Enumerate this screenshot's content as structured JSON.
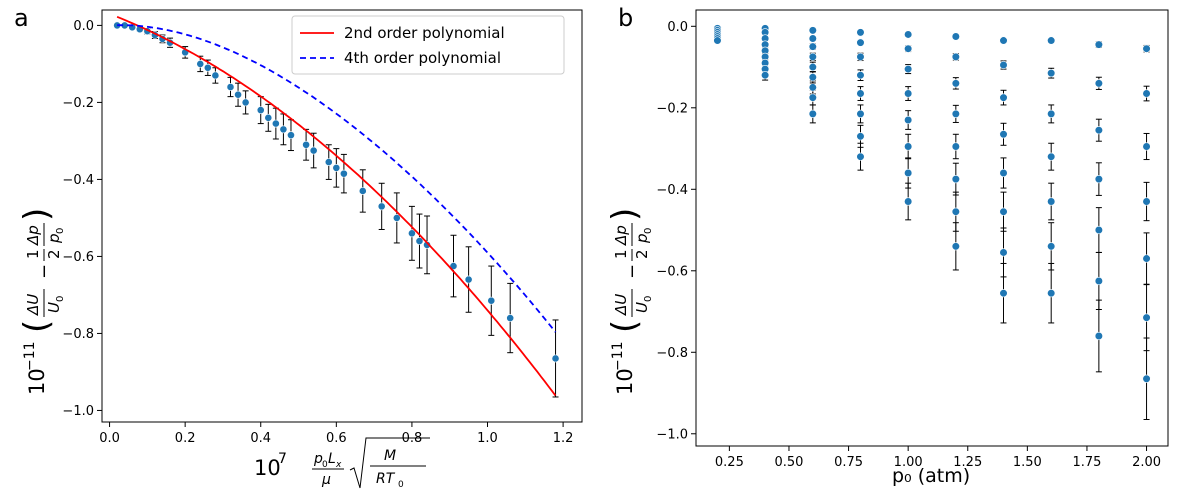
{
  "chart_data": [
    {
      "panel_label": "a",
      "type": "scatter",
      "ylabel_prefix": "10",
      "ylabel_exp": "−11",
      "xlabel_prefix": "10",
      "xlabel_exp": "7",
      "xlim": [
        -0.02,
        1.25
      ],
      "ylim": [
        -1.03,
        0.04
      ],
      "x_ticks": [
        "0.0",
        "0.2",
        "0.4",
        "0.6",
        "0.8",
        "1.0",
        "1.2"
      ],
      "x_tick_values": [
        0.0,
        0.2,
        0.4,
        0.6,
        0.8,
        1.0,
        1.2
      ],
      "y_ticks": [
        "0.0",
        "−0.2",
        "−0.4",
        "−0.6",
        "−0.8",
        "−1.0"
      ],
      "y_tick_values": [
        0.0,
        -0.2,
        -0.4,
        -0.6,
        -0.8,
        -1.0
      ],
      "legend_position": "top-right",
      "legend": [
        {
          "label": "2nd order polynomial",
          "style": "solid",
          "color": "#ff0000"
        },
        {
          "label": "4th order polynomial",
          "style": "dashed",
          "color": "#0000ff"
        }
      ],
      "points": {
        "color": "#1f77b4",
        "x": [
          0.02,
          0.04,
          0.06,
          0.08,
          0.1,
          0.12,
          0.14,
          0.16,
          0.2,
          0.24,
          0.26,
          0.28,
          0.32,
          0.34,
          0.36,
          0.4,
          0.42,
          0.44,
          0.46,
          0.48,
          0.52,
          0.54,
          0.58,
          0.6,
          0.62,
          0.67,
          0.72,
          0.76,
          0.8,
          0.82,
          0.84,
          0.91,
          0.95,
          1.01,
          1.06,
          1.18
        ],
        "y": [
          0.0,
          0.0,
          -0.005,
          -0.01,
          -0.015,
          -0.025,
          -0.035,
          -0.045,
          -0.07,
          -0.1,
          -0.11,
          -0.13,
          -0.16,
          -0.18,
          -0.2,
          -0.22,
          -0.24,
          -0.255,
          -0.27,
          -0.285,
          -0.31,
          -0.325,
          -0.355,
          -0.37,
          -0.385,
          -0.43,
          -0.47,
          -0.5,
          -0.54,
          -0.56,
          -0.57,
          -0.625,
          -0.66,
          -0.715,
          -0.76,
          -0.865
        ],
        "err": [
          0.0,
          0.0,
          0.003,
          0.005,
          0.007,
          0.009,
          0.01,
          0.012,
          0.015,
          0.02,
          0.02,
          0.02,
          0.025,
          0.03,
          0.03,
          0.035,
          0.035,
          0.04,
          0.04,
          0.04,
          0.04,
          0.045,
          0.045,
          0.05,
          0.05,
          0.055,
          0.06,
          0.065,
          0.07,
          0.07,
          0.075,
          0.08,
          0.085,
          0.09,
          0.09,
          0.1
        ]
      },
      "fit_2nd": {
        "x_range": [
          0.02,
          1.18
        ],
        "coeffs": [
          0.03,
          -0.38,
          -0.39
        ]
      },
      "fit_4th": {
        "x_range": [
          0.02,
          1.18
        ],
        "coeffs": [
          0.0,
          0.05,
          -0.9,
          0.36,
          -0.1
        ]
      }
    },
    {
      "panel_label": "b",
      "type": "scatter",
      "ylabel_prefix": "10",
      "ylabel_exp": "−11",
      "xlabel": "p₀ (atm)",
      "xlim": [
        0.11,
        2.09
      ],
      "ylim": [
        -1.03,
        0.04
      ],
      "x_ticks": [
        "0.25",
        "0.50",
        "0.75",
        "1.00",
        "1.25",
        "1.50",
        "1.75",
        "2.00"
      ],
      "x_tick_values": [
        0.25,
        0.5,
        0.75,
        1.0,
        1.25,
        1.5,
        1.75,
        2.0
      ],
      "y_ticks": [
        "0.0",
        "−0.2",
        "−0.4",
        "−0.6",
        "−0.8",
        "−1.0"
      ],
      "y_tick_values": [
        0.0,
        -0.2,
        -0.4,
        -0.6,
        -0.8,
        -1.0
      ],
      "point_color": "#1f77b4",
      "columns": [
        {
          "x": 0.2,
          "y": [
            -0.005,
            -0.01,
            -0.015,
            -0.02,
            -0.025,
            -0.03,
            -0.035
          ],
          "err": [
            0.002,
            0.002,
            0.003,
            0.003,
            0.004,
            0.004,
            0.005
          ]
        },
        {
          "x": 0.4,
          "y": [
            -0.005,
            -0.015,
            -0.03,
            -0.045,
            -0.06,
            -0.075,
            -0.09,
            -0.105,
            -0.12
          ],
          "err": [
            0.003,
            0.004,
            0.005,
            0.006,
            0.007,
            0.008,
            0.009,
            0.01,
            0.012
          ]
        },
        {
          "x": 0.6,
          "y": [
            -0.01,
            -0.03,
            -0.05,
            -0.075,
            -0.1,
            -0.125,
            -0.15,
            -0.175,
            -0.215
          ],
          "err": [
            0.003,
            0.005,
            0.007,
            0.009,
            0.012,
            0.014,
            0.016,
            0.018,
            0.022
          ]
        },
        {
          "x": 0.8,
          "y": [
            -0.015,
            -0.04,
            -0.075,
            -0.12,
            -0.165,
            -0.215,
            -0.27,
            -0.32
          ],
          "err": [
            0.004,
            0.006,
            0.009,
            0.013,
            0.017,
            0.022,
            0.027,
            0.033
          ]
        },
        {
          "x": 1.0,
          "y": [
            -0.02,
            -0.055,
            -0.105,
            -0.165,
            -0.23,
            -0.295,
            -0.36,
            -0.43
          ],
          "err": [
            0.004,
            0.007,
            0.011,
            0.017,
            0.023,
            0.03,
            0.037,
            0.045
          ]
        },
        {
          "x": 1.2,
          "y": [
            -0.025,
            -0.075,
            -0.14,
            -0.215,
            -0.295,
            -0.375,
            -0.455,
            -0.54
          ],
          "err": [
            0.005,
            0.008,
            0.014,
            0.021,
            0.03,
            0.039,
            0.048,
            0.058
          ]
        },
        {
          "x": 1.4,
          "y": [
            -0.035,
            -0.095,
            -0.175,
            -0.265,
            -0.36,
            -0.455,
            -0.555,
            -0.655
          ],
          "err": [
            0.005,
            0.01,
            0.018,
            0.027,
            0.037,
            0.048,
            0.06,
            0.073
          ]
        },
        {
          "x": 1.6,
          "y": [
            -0.035,
            -0.115,
            -0.215,
            -0.32,
            -0.43,
            -0.54,
            -0.655
          ],
          "err": [
            0.006,
            0.012,
            0.022,
            0.033,
            0.045,
            0.058,
            0.073
          ]
        },
        {
          "x": 1.8,
          "y": [
            -0.045,
            -0.14,
            -0.255,
            -0.375,
            -0.5,
            -0.625,
            -0.76
          ],
          "err": [
            0.007,
            0.015,
            0.027,
            0.04,
            0.055,
            0.07,
            0.088
          ]
        },
        {
          "x": 2.0,
          "y": [
            -0.055,
            -0.165,
            -0.295,
            -0.43,
            -0.57,
            -0.715,
            -0.865
          ],
          "err": [
            0.008,
            0.018,
            0.032,
            0.047,
            0.063,
            0.081,
            0.1
          ]
        }
      ]
    }
  ]
}
